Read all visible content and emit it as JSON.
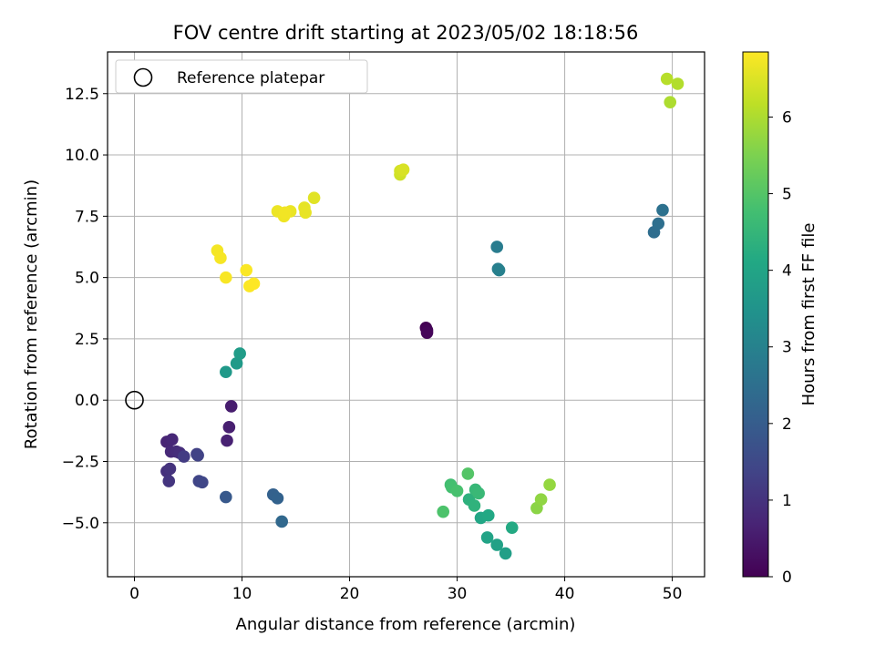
{
  "chart_data": {
    "type": "scatter",
    "title": "FOV centre drift starting at 2023/05/02 18:18:56",
    "xlabel": "Angular distance from reference (arcmin)",
    "ylabel": "Rotation from reference (arcmin)",
    "xlim": [
      -2.5,
      53
    ],
    "ylim": [
      -7.2,
      14.2
    ],
    "xticks": [
      0,
      10,
      20,
      30,
      40,
      50
    ],
    "yticks": [
      -5.0,
      -2.5,
      0.0,
      2.5,
      5.0,
      7.5,
      10.0,
      12.5
    ],
    "xtick_labels": [
      "0",
      "10",
      "20",
      "30",
      "40",
      "50"
    ],
    "ytick_labels": [
      "−5.0",
      "−2.5",
      "0.0",
      "2.5",
      "5.0",
      "7.5",
      "10.0",
      "12.5"
    ],
    "grid": true,
    "colormap": "viridis",
    "colorbar": {
      "label": "Hours from first FF file",
      "range": [
        0,
        6.85
      ],
      "ticks": [
        0,
        1,
        2,
        3,
        4,
        5,
        6
      ],
      "tick_labels": [
        "0",
        "1",
        "2",
        "3",
        "4",
        "5",
        "6"
      ]
    },
    "legend": {
      "position": "top-left",
      "label": "Reference platepar"
    },
    "reference_point": {
      "x": 0,
      "y": 0
    },
    "points": [
      {
        "x": 27.1,
        "y": 2.95,
        "hours": 0.0
      },
      {
        "x": 27.2,
        "y": 2.85,
        "hours": 0.05
      },
      {
        "x": 27.2,
        "y": 2.75,
        "hours": 0.1
      },
      {
        "x": 9.0,
        "y": -0.25,
        "hours": 0.55
      },
      {
        "x": 8.8,
        "y": -1.1,
        "hours": 0.6
      },
      {
        "x": 8.6,
        "y": -1.65,
        "hours": 0.65
      },
      {
        "x": 3.0,
        "y": -1.7,
        "hours": 0.7
      },
      {
        "x": 3.5,
        "y": -1.6,
        "hours": 0.75
      },
      {
        "x": 3.4,
        "y": -2.1,
        "hours": 0.8
      },
      {
        "x": 3.9,
        "y": -2.1,
        "hours": 0.85
      },
      {
        "x": 4.2,
        "y": -2.15,
        "hours": 0.9
      },
      {
        "x": 3.0,
        "y": -2.9,
        "hours": 0.95
      },
      {
        "x": 3.3,
        "y": -2.8,
        "hours": 1.0
      },
      {
        "x": 3.2,
        "y": -3.3,
        "hours": 1.05
      },
      {
        "x": 4.6,
        "y": -2.3,
        "hours": 1.2
      },
      {
        "x": 5.8,
        "y": -2.2,
        "hours": 1.3
      },
      {
        "x": 5.9,
        "y": -2.25,
        "hours": 1.35
      },
      {
        "x": 6.0,
        "y": -3.3,
        "hours": 1.4
      },
      {
        "x": 6.3,
        "y": -3.35,
        "hours": 1.45
      },
      {
        "x": 8.5,
        "y": -3.95,
        "hours": 1.9
      },
      {
        "x": 12.9,
        "y": -3.85,
        "hours": 2.1
      },
      {
        "x": 13.3,
        "y": -4.0,
        "hours": 2.15
      },
      {
        "x": 13.7,
        "y": -4.95,
        "hours": 2.3
      },
      {
        "x": 48.3,
        "y": 6.85,
        "hours": 2.45
      },
      {
        "x": 48.7,
        "y": 7.2,
        "hours": 2.5
      },
      {
        "x": 49.1,
        "y": 7.75,
        "hours": 2.55
      },
      {
        "x": 33.7,
        "y": 6.25,
        "hours": 2.85
      },
      {
        "x": 33.8,
        "y": 5.35,
        "hours": 2.9
      },
      {
        "x": 33.9,
        "y": 5.3,
        "hours": 2.95
      },
      {
        "x": 8.5,
        "y": 1.15,
        "hours": 3.65
      },
      {
        "x": 9.5,
        "y": 1.5,
        "hours": 3.7
      },
      {
        "x": 9.8,
        "y": 1.9,
        "hours": 3.75
      },
      {
        "x": 34.5,
        "y": -6.25,
        "hours": 3.85
      },
      {
        "x": 33.7,
        "y": -5.9,
        "hours": 3.9
      },
      {
        "x": 32.8,
        "y": -5.6,
        "hours": 3.95
      },
      {
        "x": 32.2,
        "y": -4.8,
        "hours": 4.05
      },
      {
        "x": 32.9,
        "y": -4.7,
        "hours": 4.1
      },
      {
        "x": 35.1,
        "y": -5.2,
        "hours": 4.15
      },
      {
        "x": 31.1,
        "y": -4.05,
        "hours": 4.35
      },
      {
        "x": 31.6,
        "y": -4.3,
        "hours": 4.4
      },
      {
        "x": 31.7,
        "y": -3.65,
        "hours": 4.55
      },
      {
        "x": 32.0,
        "y": -3.8,
        "hours": 4.6
      },
      {
        "x": 29.4,
        "y": -3.45,
        "hours": 4.75
      },
      {
        "x": 29.5,
        "y": -3.55,
        "hours": 4.8
      },
      {
        "x": 30.0,
        "y": -3.7,
        "hours": 4.85
      },
      {
        "x": 28.7,
        "y": -4.55,
        "hours": 4.9
      },
      {
        "x": 31.0,
        "y": -3.0,
        "hours": 5.0
      },
      {
        "x": 37.4,
        "y": -4.4,
        "hours": 5.65
      },
      {
        "x": 37.8,
        "y": -4.05,
        "hours": 5.7
      },
      {
        "x": 38.6,
        "y": -3.45,
        "hours": 5.75
      },
      {
        "x": 49.8,
        "y": 12.15,
        "hours": 6.0
      },
      {
        "x": 50.5,
        "y": 12.9,
        "hours": 6.05
      },
      {
        "x": 49.5,
        "y": 13.1,
        "hours": 6.1
      },
      {
        "x": 24.7,
        "y": 9.2,
        "hours": 6.35
      },
      {
        "x": 24.7,
        "y": 9.35,
        "hours": 6.4
      },
      {
        "x": 25.0,
        "y": 9.4,
        "hours": 6.45
      },
      {
        "x": 16.7,
        "y": 8.25,
        "hours": 6.55
      },
      {
        "x": 15.8,
        "y": 7.85,
        "hours": 6.6
      },
      {
        "x": 15.9,
        "y": 7.65,
        "hours": 6.62
      },
      {
        "x": 14.5,
        "y": 7.7,
        "hours": 6.65
      },
      {
        "x": 13.3,
        "y": 7.7,
        "hours": 6.67
      },
      {
        "x": 13.9,
        "y": 7.5,
        "hours": 6.7
      },
      {
        "x": 14.0,
        "y": 7.65,
        "hours": 6.72
      },
      {
        "x": 7.7,
        "y": 6.1,
        "hours": 6.75
      },
      {
        "x": 8.0,
        "y": 5.8,
        "hours": 6.77
      },
      {
        "x": 8.5,
        "y": 5.0,
        "hours": 6.8
      },
      {
        "x": 10.4,
        "y": 5.3,
        "hours": 6.82
      },
      {
        "x": 10.7,
        "y": 4.65,
        "hours": 6.83
      },
      {
        "x": 11.1,
        "y": 4.75,
        "hours": 6.85
      }
    ]
  }
}
